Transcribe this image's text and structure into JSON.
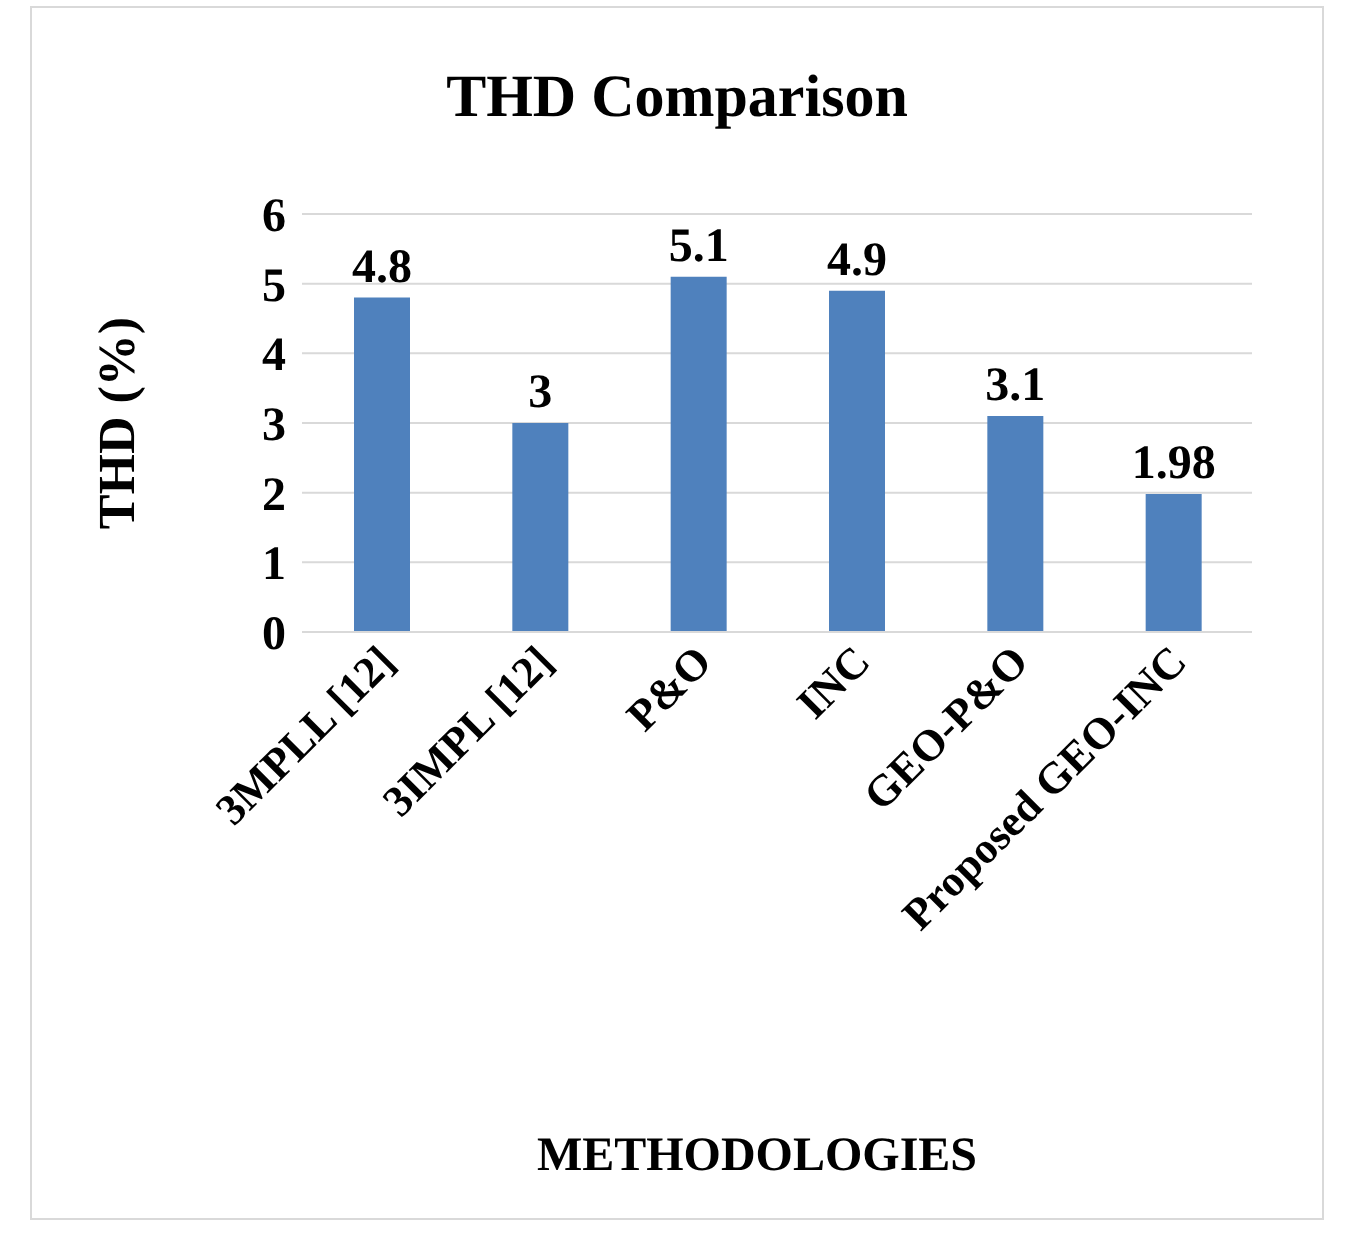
{
  "chart_data": {
    "type": "bar",
    "title": "THD Comparison",
    "xlabel": "METHODOLOGIES",
    "ylabel": "THD (%)",
    "categories": [
      "3MPLL [12]",
      "3IMPL [12]",
      "P&O",
      "INC",
      "GEO-P&O",
      "Proposed GEO-INC"
    ],
    "values": [
      4.8,
      3,
      5.1,
      4.9,
      3.1,
      1.98
    ],
    "color": "#4f81bd",
    "ylim": [
      0,
      6
    ],
    "yticks": [
      0,
      1,
      2,
      3,
      4,
      5,
      6
    ],
    "grid": "y",
    "data_labels": true
  }
}
